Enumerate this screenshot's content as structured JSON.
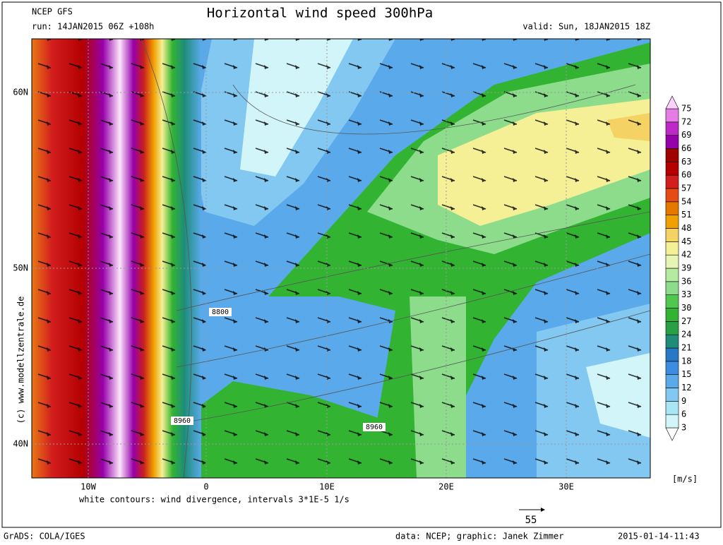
{
  "header": {
    "model": "NCEP GFS",
    "title": "Horizontal wind speed 300hPa",
    "run": "run: 14JAN2015 06Z +108h",
    "valid": "valid: Sun, 18JAN2015 18Z"
  },
  "map": {
    "lat_labels": [
      "60N",
      "50N",
      "40N"
    ],
    "lon_labels": [
      "10W",
      "0",
      "10E",
      "20E",
      "30E"
    ],
    "contour_labels": [
      "8800",
      "8960",
      "8960"
    ]
  },
  "colorbar": {
    "unit": "[m/s]",
    "levels": [
      3,
      6,
      9,
      12,
      15,
      18,
      21,
      24,
      27,
      30,
      33,
      36,
      39,
      42,
      45,
      48,
      51,
      54,
      57,
      60,
      63,
      66,
      69,
      72,
      75
    ],
    "colors": [
      "#ffffff",
      "#d2f5fa",
      "#a8e6f5",
      "#82c8f0",
      "#5aaaeb",
      "#3c8ce1",
      "#2878c8",
      "#1e8c78",
      "#28a046",
      "#32b432",
      "#50c850",
      "#8cdc8c",
      "#b4eba0",
      "#e6f5b4",
      "#f5f096",
      "#f5d264",
      "#f0a000",
      "#e67800",
      "#e64b14",
      "#d21e1e",
      "#b40000",
      "#a00000",
      "#9600aa",
      "#be28c8",
      "#e67ce6",
      "#fcd2fc"
    ]
  },
  "footer": {
    "divergence_note": "white contours: wind divergence, intervals 3*1E-5 1/s",
    "vector_reference": "55",
    "copyright": "(c) www.modellzentrale.de",
    "software": "GrADS: COLA/IGES",
    "credits": "data: NCEP; graphic: Janek Zimmer",
    "timestamp": "2015-01-14-11:43"
  }
}
